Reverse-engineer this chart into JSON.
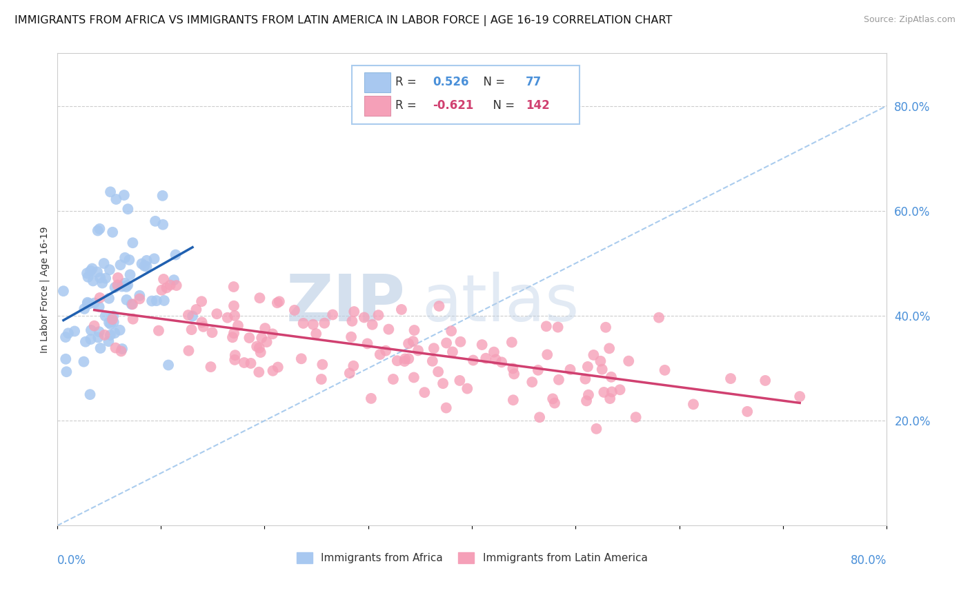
{
  "title": "IMMIGRANTS FROM AFRICA VS IMMIGRANTS FROM LATIN AMERICA IN LABOR FORCE | AGE 16-19 CORRELATION CHART",
  "source": "Source: ZipAtlas.com",
  "ylabel": "In Labor Force | Age 16-19",
  "right_ytick_labels": [
    "20.0%",
    "40.0%",
    "60.0%",
    "80.0%"
  ],
  "right_ytick_values": [
    0.2,
    0.4,
    0.6,
    0.8
  ],
  "xlim": [
    0.0,
    0.8
  ],
  "ylim": [
    0.0,
    0.9
  ],
  "africa_R": 0.526,
  "africa_N": 77,
  "latin_R": -0.621,
  "latin_N": 142,
  "africa_color": "#a8c8f0",
  "latin_color": "#f5a0b8",
  "africa_line_color": "#2060b0",
  "latin_line_color": "#d04070",
  "watermark_zip_color": "#b8cce4",
  "watermark_atlas_color": "#b8cce4",
  "background_color": "#ffffff",
  "grid_color": "#cccccc",
  "title_fontsize": 11.5,
  "axis_label_fontsize": 10,
  "legend_fontsize": 12
}
